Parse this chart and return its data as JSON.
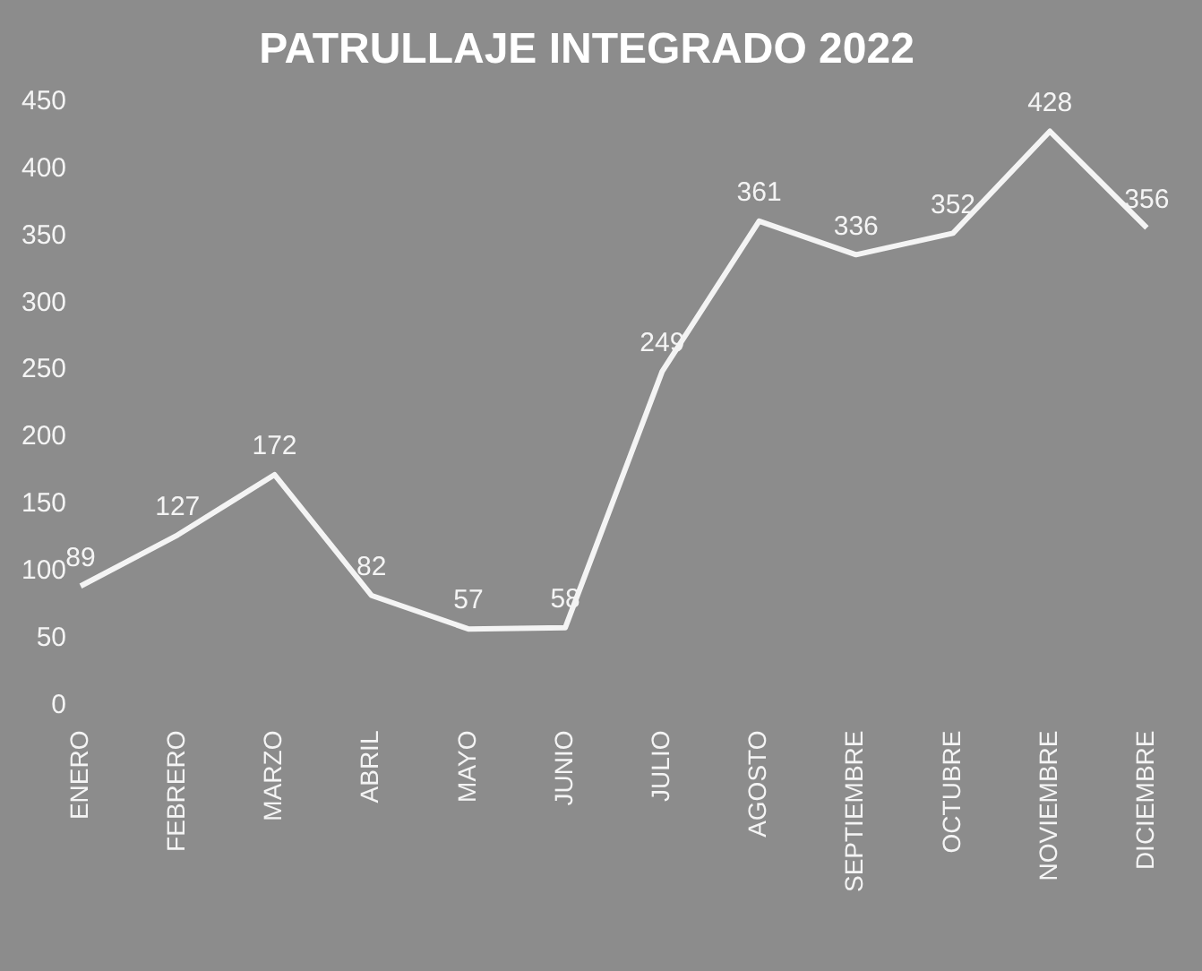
{
  "chart_data": {
    "type": "line",
    "title": "PATRULLAJE INTEGRADO 2022",
    "categories": [
      "ENERO",
      "FEBRERO",
      "MARZO",
      "ABRIL",
      "MAYO",
      "JUNIO",
      "JULIO",
      "AGOSTO",
      "SEPTIEMBRE",
      "OCTUBRE",
      "NOVIEMBRE",
      "DICIEMBRE"
    ],
    "series": [
      {
        "color": "#f4f4f4",
        "values": [
          89,
          127,
          172,
          82,
          57,
          58,
          249,
          361,
          336,
          352,
          428,
          356
        ]
      }
    ],
    "ylim": [
      0,
      450
    ],
    "yticks": [
      0,
      50,
      100,
      150,
      200,
      250,
      300,
      350,
      400,
      450
    ],
    "grid": false,
    "legend": false,
    "marker": "none",
    "data_labels": true
  }
}
